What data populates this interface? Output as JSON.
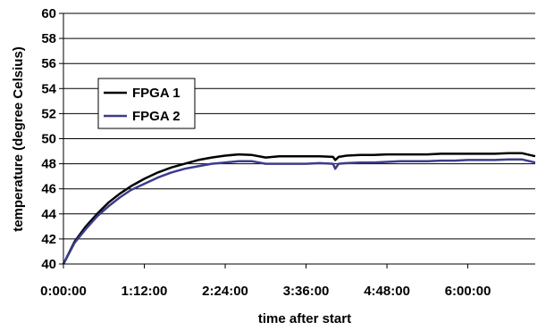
{
  "chart_data": {
    "type": "line",
    "title": "",
    "xlabel": "time after start",
    "ylabel": "temperature (degree Celsius)",
    "xlim_seconds": [
      0,
      25200
    ],
    "ylim": [
      40,
      60
    ],
    "y_ticks": [
      40,
      42,
      44,
      46,
      48,
      50,
      52,
      54,
      56,
      58,
      60
    ],
    "x_ticks": [
      {
        "value": 0,
        "label": "0:00:00"
      },
      {
        "value": 4320,
        "label": "1:12:00"
      },
      {
        "value": 8640,
        "label": "2:24:00"
      },
      {
        "value": 12960,
        "label": "3:36:00"
      },
      {
        "value": 17280,
        "label": "4:48:00"
      },
      {
        "value": 21600,
        "label": "6:00:00"
      }
    ],
    "grid": "horizontal",
    "legend_position": "left-upper",
    "series": [
      {
        "name": "FPGA 1",
        "color": "#000000",
        "x": [
          0,
          600,
          1200,
          1800,
          2400,
          3000,
          3600,
          4320,
          5040,
          5760,
          6480,
          7200,
          7920,
          8640,
          9360,
          10080,
          10800,
          11520,
          12240,
          12960,
          13680,
          14400,
          14520,
          14700,
          15120,
          15840,
          16560,
          17280,
          18000,
          18720,
          19440,
          20160,
          20880,
          21600,
          22320,
          23040,
          23760,
          24480,
          25200
        ],
        "values": [
          40.0,
          41.8,
          43.0,
          44.0,
          44.9,
          45.6,
          46.2,
          46.8,
          47.3,
          47.7,
          48.0,
          48.3,
          48.5,
          48.65,
          48.75,
          48.7,
          48.5,
          48.6,
          48.6,
          48.6,
          48.6,
          48.55,
          48.3,
          48.55,
          48.65,
          48.7,
          48.7,
          48.75,
          48.75,
          48.75,
          48.75,
          48.8,
          48.8,
          48.8,
          48.8,
          48.8,
          48.85,
          48.85,
          48.6
        ]
      },
      {
        "name": "FPGA 2",
        "color": "#3c3c8c",
        "x": [
          0,
          600,
          1200,
          1800,
          2400,
          3000,
          3600,
          4320,
          5040,
          5760,
          6480,
          7200,
          7920,
          8640,
          9360,
          10080,
          10800,
          11520,
          12240,
          12960,
          13680,
          14400,
          14520,
          14700,
          15120,
          15840,
          16560,
          17280,
          18000,
          18720,
          19440,
          20160,
          20880,
          21600,
          22320,
          23040,
          23760,
          24480,
          25200
        ],
        "values": [
          40.0,
          41.7,
          42.8,
          43.8,
          44.6,
          45.3,
          45.9,
          46.4,
          46.9,
          47.3,
          47.6,
          47.8,
          48.0,
          48.1,
          48.2,
          48.2,
          48.0,
          48.0,
          48.0,
          48.0,
          48.05,
          48.0,
          47.6,
          48.0,
          48.05,
          48.1,
          48.1,
          48.15,
          48.2,
          48.2,
          48.2,
          48.25,
          48.25,
          48.3,
          48.3,
          48.3,
          48.35,
          48.35,
          48.1
        ]
      }
    ]
  }
}
